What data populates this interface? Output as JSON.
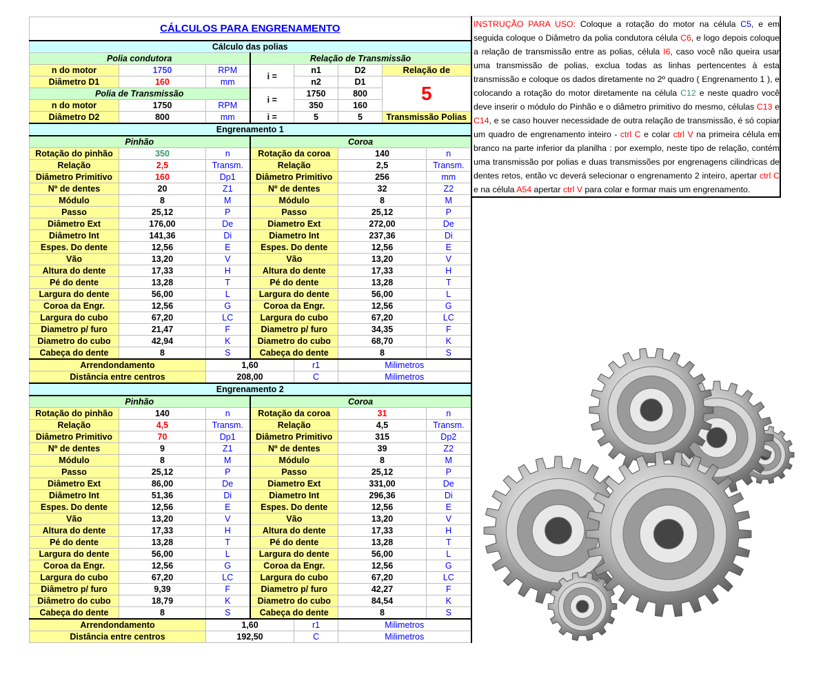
{
  "title": "CÁLCULOS PARA ENGRENAMENTO",
  "pulleys": {
    "section": "Cálculo das polias",
    "driver_header": "Polia condutora",
    "ratio_header": "Relação de Transmissão",
    "rows": [
      {
        "label": "n do motor",
        "value": "1750",
        "unit": "RPM"
      },
      {
        "label": "Diâmetro D1",
        "value": "160",
        "unit": "mm"
      }
    ],
    "driven_header": "Polia de Transmissão",
    "driven_rows": [
      {
        "label": "n do motor",
        "value": "1750",
        "unit": "RPM"
      },
      {
        "label": "Diâmetro D2",
        "value": "800",
        "unit": "mm"
      }
    ],
    "i_label": "i =",
    "formula": {
      "n1": "n1",
      "d2": "D2",
      "n2": "n2",
      "d1": "D1"
    },
    "values": {
      "n1": "1750",
      "d2": "800",
      "n2": "350",
      "d1": "160"
    },
    "result": {
      "left": "5",
      "right": "5"
    },
    "relation_label_top": "Relação de",
    "relation_value": "5",
    "relation_label_bottom": "Transmissão Polias"
  },
  "gears": [
    {
      "title": "Engrenamento 1",
      "pinion": "Pinhão",
      "crown": "Coroa",
      "rows": [
        [
          "Rotação do pinhão",
          "350",
          "n",
          "Rotação da coroa",
          "140",
          "n"
        ],
        [
          "Relação",
          "2,5",
          "Transm.",
          "Relação",
          "2,5",
          "Transm."
        ],
        [
          "Diâmetro Primitivo",
          "160",
          "Dp1",
          "Diâmetro Primitivo",
          "256",
          "mm"
        ],
        [
          "Nº de dentes",
          "20",
          "Z1",
          "Nº de dentes",
          "32",
          "Z2"
        ],
        [
          "Módulo",
          "8",
          "M",
          "Módulo",
          "8",
          "M"
        ],
        [
          "Passo",
          "25,12",
          "P",
          "Passo",
          "25,12",
          "P"
        ],
        [
          "Diâmetro Ext",
          "176,00",
          "De",
          "Diametro Ext",
          "272,00",
          "De"
        ],
        [
          "Diâmetro Int",
          "141,36",
          "Di",
          "Diametro Int",
          "237,36",
          "Di"
        ],
        [
          "Espes. Do dente",
          "12,56",
          "E",
          "Espes. Do dente",
          "12,56",
          "E"
        ],
        [
          "Vão",
          "13,20",
          "V",
          "Vão",
          "13,20",
          "V"
        ],
        [
          "Altura do dente",
          "17,33",
          "H",
          "Altura do dente",
          "17,33",
          "H"
        ],
        [
          "Pé do dente",
          "13,28",
          "T",
          "Pé do dente",
          "13,28",
          "T"
        ],
        [
          "Largura do dente",
          "56,00",
          "L",
          "Largura do dente",
          "56,00",
          "L"
        ],
        [
          "Coroa da Engr.",
          "12,56",
          "G",
          "Coroa da Engr.",
          "12,56",
          "G"
        ],
        [
          "Largura do cubo",
          "67,20",
          "LC",
          "Largura do cubo",
          "67,20",
          "LC"
        ],
        [
          "Diametro p/ furo",
          "21,47",
          "F",
          "Diametro p/ furo",
          "34,35",
          "F"
        ],
        [
          "Diametro do cubo",
          "42,94",
          "K",
          "Diametro do cubo",
          "68,70",
          "K"
        ],
        [
          "Cabeça do dente",
          "8",
          "S",
          "Cabeça do dente",
          "8",
          "S"
        ]
      ],
      "value_colors": {
        "0-1": "teal",
        "1-1": "red",
        "2-1": "red"
      },
      "footer": [
        [
          "Arrendondamento",
          "1,60",
          "r1",
          "Milimetros"
        ],
        [
          "Distância entre centros",
          "208,00",
          "C",
          "Milimetros"
        ]
      ]
    },
    {
      "title": "Engrenamento 2",
      "pinion": "Pinhão",
      "crown": "Coroa",
      "rows": [
        [
          "Rotação do pinhão",
          "140",
          "n",
          "Rotação da coroa",
          "31",
          "n"
        ],
        [
          "Relação",
          "4,5",
          "Transm.",
          "Relação",
          "4,5",
          "Transm."
        ],
        [
          "Diâmetro Primitivo",
          "70",
          "Dp1",
          "Diâmetro Primitivo",
          "315",
          "Dp2"
        ],
        [
          "Nº de dentes",
          "9",
          "Z1",
          "Nº de dentes",
          "39",
          "Z2"
        ],
        [
          "Módulo",
          "8",
          "M",
          "Módulo",
          "8",
          "M"
        ],
        [
          "Passo",
          "25,12",
          "P",
          "Passo",
          "25,12",
          "P"
        ],
        [
          "Diâmetro Ext",
          "86,00",
          "De",
          "Diametro Ext",
          "331,00",
          "De"
        ],
        [
          "Diâmetro Int",
          "51,36",
          "Di",
          "Diametro Int",
          "296,36",
          "Di"
        ],
        [
          "Espes. Do dente",
          "12,56",
          "E",
          "Espes. Do dente",
          "12,56",
          "E"
        ],
        [
          "Vão",
          "13,20",
          "V",
          "Vão",
          "13,20",
          "V"
        ],
        [
          "Altura do dente",
          "17,33",
          "H",
          "Altura do dente",
          "17,33",
          "H"
        ],
        [
          "Pé do dente",
          "13,28",
          "T",
          "Pé do dente",
          "13,28",
          "T"
        ],
        [
          "Largura do dente",
          "56,00",
          "L",
          "Largura do dente",
          "56,00",
          "L"
        ],
        [
          "Coroa da Engr.",
          "12,56",
          "G",
          "Coroa da Engr.",
          "12,56",
          "G"
        ],
        [
          "Largura do cubo",
          "67,20",
          "LC",
          "Largura do cubo",
          "67,20",
          "LC"
        ],
        [
          "Diâmetro p/ furo",
          "9,39",
          "F",
          "Diametro p/ furo",
          "42,27",
          "F"
        ],
        [
          "Diâmetro do cubo",
          "18,79",
          "K",
          "Diametro do cubo",
          "84,54",
          "K"
        ],
        [
          "Cabeça do dente",
          "8",
          "S",
          "Cabeça do dente",
          "8",
          "S"
        ]
      ],
      "value_colors": {
        "0-4": "red",
        "1-1": "red",
        "2-1": "red"
      },
      "footer": [
        [
          "Arrendondamento",
          "1,60",
          "r1",
          "Milimetros"
        ],
        [
          "Distância entre centros",
          "192,50",
          "C",
          "Milimetros"
        ]
      ]
    }
  ],
  "instructions": [
    {
      "text": "INSTRUÇÃO PARA USO:",
      "color": "#ff0000"
    },
    {
      "text": " Coloque a rotação do motor na célula ",
      "color": "#000000"
    },
    {
      "text": "C5",
      "color": "#0000ff"
    },
    {
      "text": ", e em seguida coloque o Diâmetro da polia condutora célula ",
      "color": "#000000"
    },
    {
      "text": "C6",
      "color": "#ff0000"
    },
    {
      "text": ", e logo depois coloque a relação de transmissão entre as polias, célula ",
      "color": "#000000"
    },
    {
      "text": "I6",
      "color": "#ff0000"
    },
    {
      "text": ", caso você não queira usar uma transmissão de polias, exclua todas as linhas pertencentes à esta transmissão e coloque os dados diretamente no 2º quadro ( Engrenamento 1 ), e colocando a rotação do motor diretamente na célula ",
      "color": "#000000"
    },
    {
      "text": "C12",
      "color": "#339966"
    },
    {
      "text": " e neste quadro você deve inserir o módulo do Pinhão e o diâmetro primitivo do mesmo, células ",
      "color": "#000000"
    },
    {
      "text": "C13",
      "color": "#ff0000"
    },
    {
      "text": " e ",
      "color": "#000000"
    },
    {
      "text": "C14",
      "color": "#ff0000"
    },
    {
      "text": ", e se caso houver  necessidade de outra relação de transmissão, é só copiar um quadro de engrenamento inteiro - ",
      "color": "#000000"
    },
    {
      "text": "ctrl C",
      "color": "#ff0000"
    },
    {
      "text": " e colar ",
      "color": "#000000"
    },
    {
      "text": "ctrl V",
      "color": "#ff0000"
    },
    {
      "text": " na primeira célula em branco na parte inferior da planilha : por exemplo, neste tipo de relação, contém uma transmissão por polias e duas transmissões por engrenagens cilindricas de dentes retos, então vc deverá selecionar o engrenamento 2 inteiro, apertar ",
      "color": "#000000"
    },
    {
      "text": "ctrl C",
      "color": "#ff0000"
    },
    {
      "text": " e na célula ",
      "color": "#000000"
    },
    {
      "text": "A54",
      "color": "#ff0000"
    },
    {
      "text": " apertar ",
      "color": "#000000"
    },
    {
      "text": "ctrl V",
      "color": "#ff0000"
    },
    {
      "text": " para colar e formar mais um engrenamento.",
      "color": "#000000"
    }
  ],
  "image": {
    "icon": "metal-gears-image"
  },
  "colors": {
    "label_bg": "#ffff99",
    "section_bg": "#ccffff",
    "header_bg": "#ccffcc",
    "unit": "#0000ff",
    "input": "#ff0000"
  }
}
